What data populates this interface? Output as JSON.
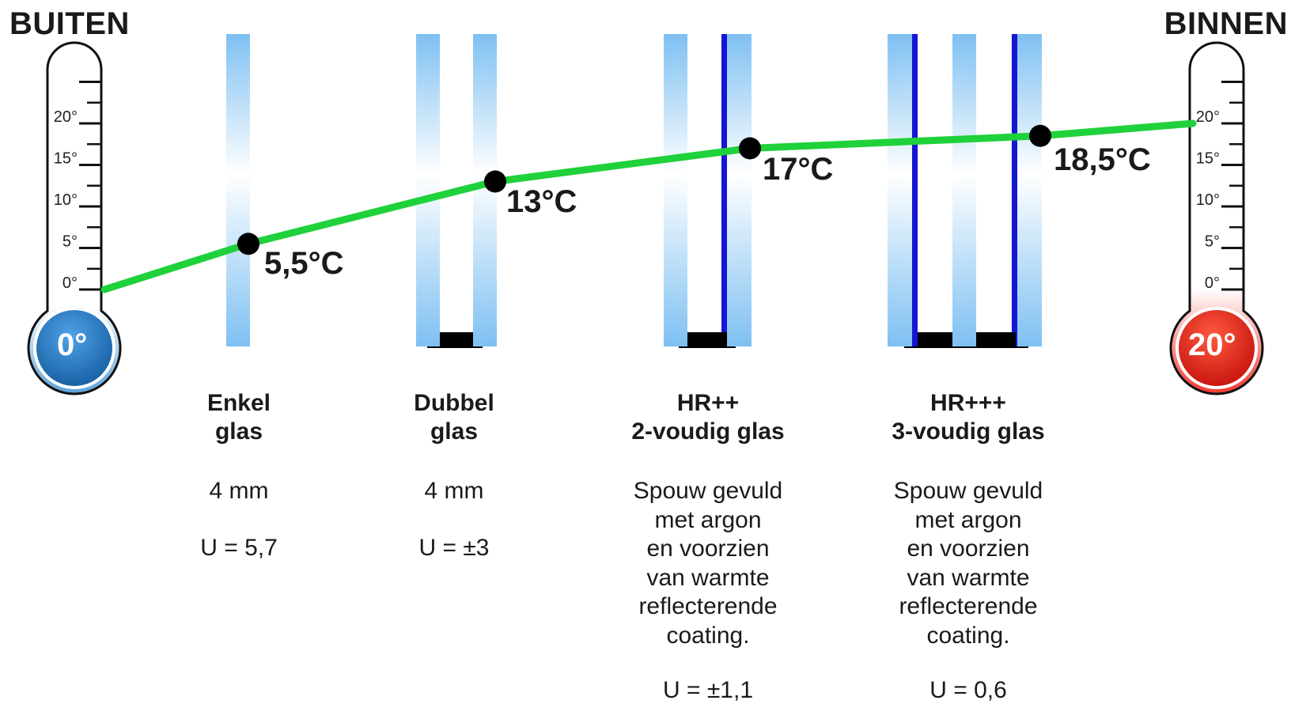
{
  "header": {
    "left_title": "BUITEN",
    "right_title": "BINNEN"
  },
  "thermometers": {
    "left": {
      "bulb_value": "0°",
      "color": "#1e6fb8",
      "scale": [
        "20°",
        "15°",
        "10°",
        "5°",
        "0°"
      ]
    },
    "right": {
      "bulb_value": "20°",
      "color": "#e8201a",
      "scale": [
        "20°",
        "15°",
        "10°",
        "5°",
        "0°"
      ]
    }
  },
  "chart_data": {
    "type": "line",
    "line_color": "#1fd13a",
    "points": [
      {
        "label": "",
        "value": 0
      },
      {
        "label": "5,5°C",
        "value": 5.5
      },
      {
        "label": "13°C",
        "value": 13
      },
      {
        "label": "17°C",
        "value": 17
      },
      {
        "label": "18,5°C",
        "value": 18.5
      },
      {
        "label": "",
        "value": 20
      }
    ]
  },
  "panes": [
    {
      "title_lines": [
        "Enkel",
        "glas"
      ],
      "desc_lines": [
        "4 mm"
      ],
      "u_value": "U = 5,7"
    },
    {
      "title_lines": [
        "Dubbel",
        "glas"
      ],
      "desc_lines": [
        "4 mm"
      ],
      "u_value": "U = ±3"
    },
    {
      "title_lines": [
        "HR++",
        "2-voudig glas"
      ],
      "desc_lines": [
        "Spouw gevuld",
        "met argon",
        "en voorzien",
        "van warmte",
        "reflecterende",
        "coating."
      ],
      "u_value": "U = ±1,1"
    },
    {
      "title_lines": [
        "HR+++",
        "3-voudig glas"
      ],
      "desc_lines": [
        "Spouw gevuld",
        "met argon",
        "en voorzien",
        "van warmte",
        "reflecterende",
        "coating."
      ],
      "u_value": "U = 0,6"
    }
  ],
  "colors": {
    "glass_light": "#ffffff",
    "glass_blue": "#7ec0f2",
    "coating": "#1515d6",
    "spacer": "#000000"
  }
}
